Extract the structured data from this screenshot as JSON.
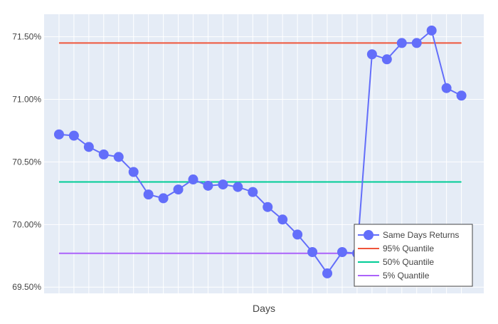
{
  "chart_data": {
    "type": "line",
    "title": "",
    "xlabel": "Days",
    "ylabel": "",
    "x": [
      1,
      2,
      3,
      4,
      5,
      6,
      7,
      8,
      9,
      10,
      11,
      12,
      13,
      14,
      15,
      16,
      17,
      18,
      19,
      20,
      21,
      22,
      23,
      24,
      25,
      26,
      27,
      28
    ],
    "x_tick_labels_visible": false,
    "ylim": [
      69.45,
      71.68
    ],
    "y_ticks": [
      69.5,
      70.0,
      70.5,
      71.0,
      71.5
    ],
    "y_tick_labels": [
      "69.50%",
      "70.00%",
      "70.50%",
      "71.00%",
      "71.50%"
    ],
    "grid": true,
    "legend_position": "bottom-right",
    "series": [
      {
        "name": "Same Days Returns",
        "kind": "line+markers",
        "color": "#636efa",
        "values": [
          70.72,
          70.71,
          70.62,
          70.56,
          70.54,
          70.42,
          70.24,
          70.21,
          70.28,
          70.36,
          70.31,
          70.32,
          70.3,
          70.26,
          70.14,
          70.04,
          69.92,
          69.78,
          69.61,
          69.78,
          69.77,
          71.36,
          71.32,
          71.45,
          71.45,
          71.55,
          71.09,
          71.03
        ]
      },
      {
        "name": "95% Quantile",
        "kind": "hline",
        "color": "#ef553b",
        "value": 71.45
      },
      {
        "name": "50% Quantile",
        "kind": "hline",
        "color": "#00cc96",
        "value": 70.34
      },
      {
        "name": "5% Quantile",
        "kind": "hline",
        "color": "#ab63fa",
        "value": 69.77
      }
    ]
  },
  "colors": {
    "plot_background": "#e5ecf6",
    "grid": "#ffffff",
    "text": "#444444"
  }
}
